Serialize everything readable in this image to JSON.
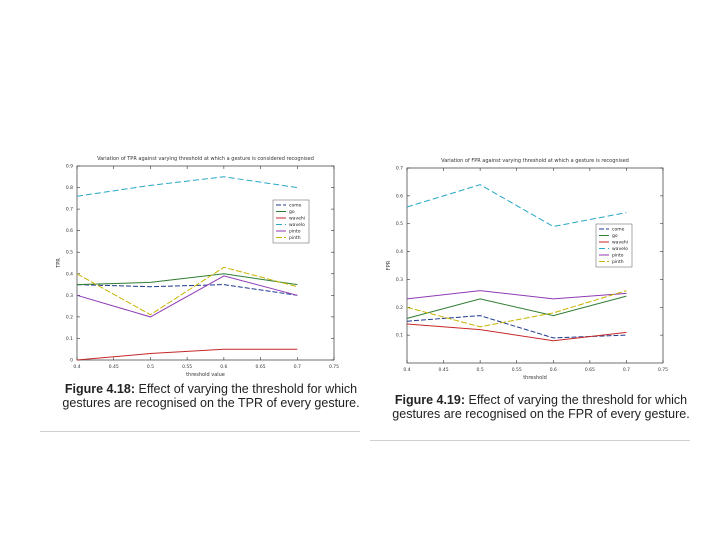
{
  "figures": [
    {
      "caption": {
        "label": "Figure 4.18:",
        "text": "Effect of varying the threshold for which gestures are recognised on the TPR of every gesture."
      },
      "chart_data": {
        "type": "line",
        "title": "Variation of TPR against varying threshold at which a gesture is considered recognised",
        "xlabel": "threshold value",
        "ylabel": "TPR",
        "xlim": [
          0.4,
          0.75
        ],
        "ylim": [
          0,
          0.9
        ],
        "x_ticks": [
          "0.4",
          "0.45",
          "0.5",
          "0.55",
          "0.6",
          "0.65",
          "0.7",
          "0.75"
        ],
        "y_ticks": [
          "0",
          "0.1",
          "0.2",
          "0.3",
          "0.4",
          "0.5",
          "0.6",
          "0.7",
          "0.8",
          "0.9"
        ],
        "x": [
          0.4,
          0.5,
          0.6,
          0.7
        ],
        "series": [
          {
            "name": "come",
            "color": "#1f3a8f",
            "values": [
              0.35,
              0.34,
              0.35,
              0.3
            ]
          },
          {
            "name": "go",
            "color": "#2e7d32",
            "values": [
              0.35,
              0.36,
              0.4,
              0.35
            ]
          },
          {
            "name": "wavehi",
            "color": "#c62828",
            "values": [
              0.0,
              0.03,
              0.05,
              0.05
            ]
          },
          {
            "name": "wavelo",
            "color": "#26a8c6",
            "values": [
              0.76,
              0.81,
              0.85,
              0.8
            ]
          },
          {
            "name": "pinto",
            "color": "#8e3bb5",
            "values": [
              0.3,
              0.2,
              0.39,
              0.3
            ]
          },
          {
            "name": "pinth",
            "color": "#c8b400",
            "values": [
              0.4,
              0.21,
              0.43,
              0.34
            ]
          }
        ],
        "legend": "right-middle"
      }
    },
    {
      "caption": {
        "label": "Figure 4.19:",
        "text": "Effect of varying the threshold for which gestures are recognised on the FPR of every gesture."
      },
      "chart_data": {
        "type": "line",
        "title": "Variation of FPR against varying threshold at which a gesture is recognised",
        "xlabel": "threshold",
        "ylabel": "FPR",
        "xlim": [
          0.4,
          0.75
        ],
        "ylim": [
          0,
          0.7
        ],
        "x_ticks": [
          "0.4",
          "0.45",
          "0.5",
          "0.55",
          "0.6",
          "0.65",
          "0.7",
          "0.75"
        ],
        "y_ticks": [
          "0.1",
          "0.2",
          "0.3",
          "0.4",
          "0.5",
          "0.6",
          "0.7"
        ],
        "x": [
          0.4,
          0.5,
          0.6,
          0.7
        ],
        "series": [
          {
            "name": "come",
            "color": "#1f3a8f",
            "values": [
              0.15,
              0.17,
              0.09,
              0.1
            ]
          },
          {
            "name": "go",
            "color": "#2e7d32",
            "values": [
              0.16,
              0.23,
              0.17,
              0.24
            ]
          },
          {
            "name": "wavehi",
            "color": "#c62828",
            "values": [
              0.14,
              0.12,
              0.08,
              0.11
            ]
          },
          {
            "name": "wavelo",
            "color": "#26a8c6",
            "values": [
              0.56,
              0.64,
              0.49,
              0.54
            ]
          },
          {
            "name": "pinto",
            "color": "#8e3bb5",
            "values": [
              0.23,
              0.26,
              0.23,
              0.25
            ]
          },
          {
            "name": "pinth",
            "color": "#c8b400",
            "values": [
              0.2,
              0.13,
              0.18,
              0.26
            ]
          }
        ],
        "legend": "right-middle"
      }
    }
  ]
}
